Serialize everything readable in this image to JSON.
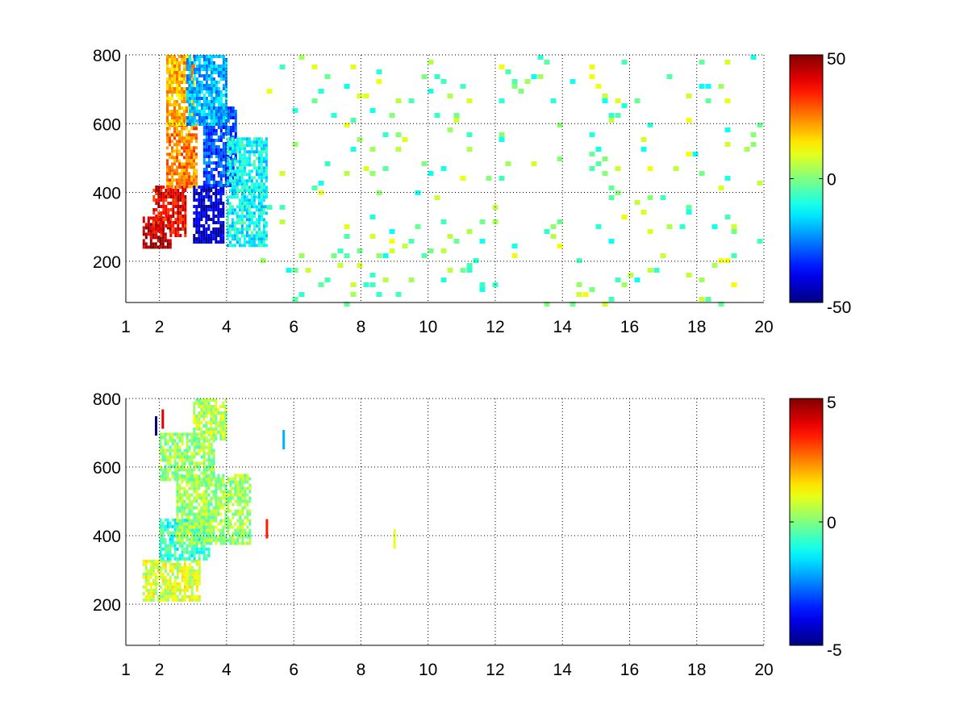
{
  "figure": {
    "background": "#ffffff"
  },
  "colormap": "jet",
  "chart_data": [
    {
      "type": "heatmap",
      "title": "",
      "xlabel": "",
      "ylabel": "",
      "xlim": [
        1,
        20
      ],
      "ylim": [
        80,
        800
      ],
      "xticks": [
        1,
        2,
        4,
        6,
        8,
        10,
        12,
        14,
        16,
        18,
        20
      ],
      "yticks": [
        200,
        400,
        600,
        800
      ],
      "grid": true,
      "colorbar": {
        "range": [
          -50,
          50
        ],
        "ticks": [
          -50,
          0,
          50
        ],
        "position": "right"
      },
      "nan_color": "#ffffff",
      "description_regions": [
        {
          "x": [
            1.5,
            2.3
          ],
          "y": [
            240,
            330
          ],
          "value": 45
        },
        {
          "x": [
            1.8,
            2.8
          ],
          "y": [
            270,
            420
          ],
          "value": 38
        },
        {
          "x": [
            2.2,
            3.1
          ],
          "y": [
            420,
            600
          ],
          "value": 25
        },
        {
          "x": [
            2.2,
            3.0
          ],
          "y": [
            600,
            800
          ],
          "value": 20
        },
        {
          "x": [
            3.0,
            3.9
          ],
          "y": [
            260,
            420
          ],
          "value": -42
        },
        {
          "x": [
            3.3,
            4.3
          ],
          "y": [
            420,
            650
          ],
          "value": -30
        },
        {
          "x": [
            2.8,
            4.0
          ],
          "y": [
            600,
            800
          ],
          "value": -20
        },
        {
          "x": [
            4.0,
            5.2
          ],
          "y": [
            250,
            560
          ],
          "value": -12
        }
      ],
      "sparse_noise": {
        "x": [
          5,
          19.8
        ],
        "y": [
          80,
          800
        ],
        "value_range": [
          -12,
          12
        ],
        "density": 0.06
      }
    },
    {
      "type": "heatmap",
      "title": "",
      "xlabel": "",
      "ylabel": "",
      "xlim": [
        1,
        20
      ],
      "ylim": [
        80,
        800
      ],
      "xticks": [
        1,
        2,
        4,
        6,
        8,
        10,
        12,
        14,
        16,
        18,
        20
      ],
      "yticks": [
        200,
        400,
        600,
        800
      ],
      "grid": true,
      "colorbar": {
        "range": [
          -5,
          5
        ],
        "ticks": [
          -5,
          0,
          5
        ],
        "position": "right"
      },
      "nan_color": "#ffffff",
      "description_regions": [
        {
          "x": [
            1.5,
            3.2
          ],
          "y": [
            210,
            330
          ],
          "value": 0.8
        },
        {
          "x": [
            2.0,
            3.5
          ],
          "y": [
            330,
            450
          ],
          "value": -0.8
        },
        {
          "x": [
            2.5,
            4.7
          ],
          "y": [
            380,
            580
          ],
          "value": 0.3
        },
        {
          "x": [
            2.0,
            3.6
          ],
          "y": [
            560,
            700
          ],
          "value": 0.2
        },
        {
          "x": [
            3.0,
            4.0
          ],
          "y": [
            680,
            800
          ],
          "value": 0.5
        }
      ],
      "outliers": [
        {
          "x": 1.9,
          "y": 720,
          "value": -5
        },
        {
          "x": 2.1,
          "y": 740,
          "value": 4
        },
        {
          "x": 5.7,
          "y": 680,
          "value": -2
        },
        {
          "x": 5.2,
          "y": 420,
          "value": 3.5
        },
        {
          "x": 9.0,
          "y": 390,
          "value": 1
        }
      ]
    }
  ]
}
